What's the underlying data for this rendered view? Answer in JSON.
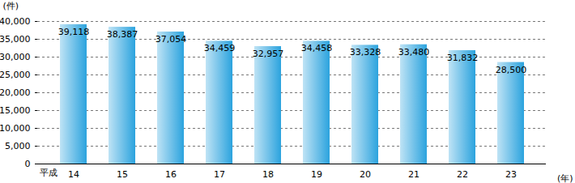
{
  "chart_data": {
    "type": "bar",
    "y_label": "(件)",
    "x_label": "(年)",
    "annotations": [
      "平成"
    ],
    "categories": [
      "14",
      "15",
      "16",
      "17",
      "18",
      "19",
      "20",
      "21",
      "22",
      "23"
    ],
    "values": [
      39118,
      38387,
      37054,
      34459,
      32957,
      34458,
      33328,
      33480,
      31832,
      28500
    ],
    "value_labels": [
      "39,118",
      "38,387",
      "37,054",
      "34,459",
      "32,957",
      "34,458",
      "33,328",
      "33,480",
      "31,832",
      "28,500"
    ],
    "data_labels": true,
    "color": "#2ba3de",
    "ylim": [
      0,
      40000
    ],
    "yticks": [
      0,
      {
        "value": 5000,
        "label": "5,000"
      },
      {
        "value": 10000,
        "label": "10,000"
      },
      {
        "value": 15000,
        "label": "15,000"
      },
      {
        "value": 20000,
        "label": "20,000"
      },
      {
        "value": 25000,
        "label": "25,000"
      },
      {
        "value": 30000,
        "label": "30,000"
      },
      {
        "value": 35000,
        "label": "35,000"
      },
      {
        "value": 40000,
        "label": "40,000"
      }
    ],
    "grid": true
  }
}
